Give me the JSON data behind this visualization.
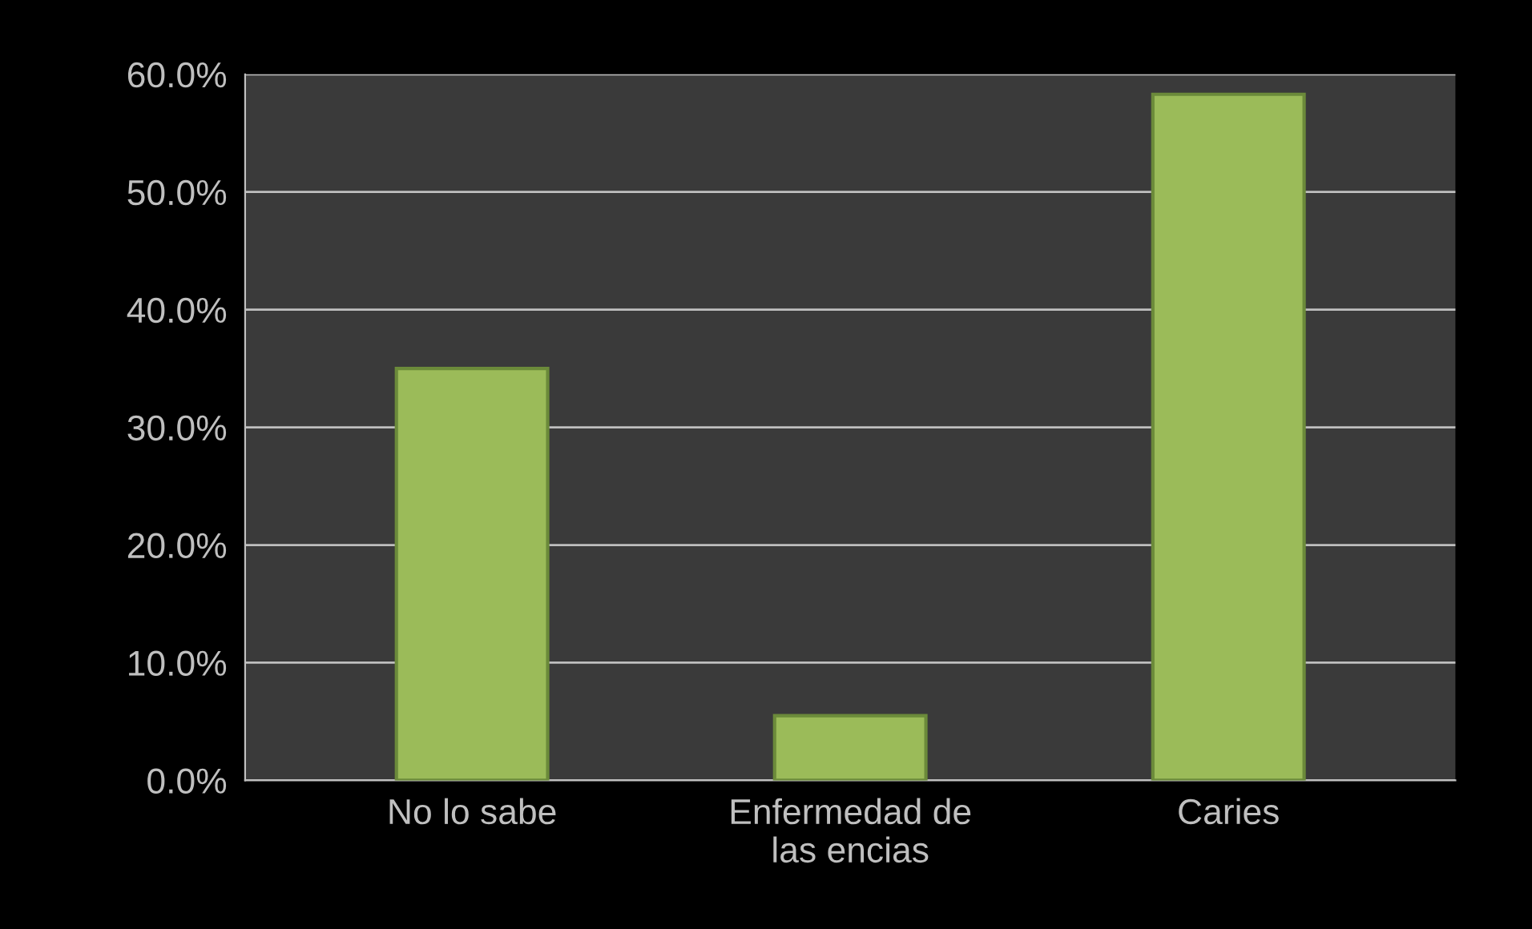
{
  "chart_data": {
    "type": "bar",
    "categories": [
      "No lo sabe",
      "Enfermedad de\nlas encias",
      "Caries"
    ],
    "values": [
      35,
      5.5,
      58.3
    ],
    "color": "#9bbb59",
    "ylim": [
      0,
      60
    ],
    "yticks": [
      {
        "value": 0,
        "label": "0.0%"
      },
      {
        "value": 10,
        "label": "10.0%"
      },
      {
        "value": 20,
        "label": "20.0%"
      },
      {
        "value": 30,
        "label": "30.0%"
      },
      {
        "value": 40,
        "label": "40.0%"
      },
      {
        "value": 50,
        "label": "50.0%"
      },
      {
        "value": 60,
        "label": "60.0%"
      }
    ],
    "grid": "y",
    "legend": false
  }
}
